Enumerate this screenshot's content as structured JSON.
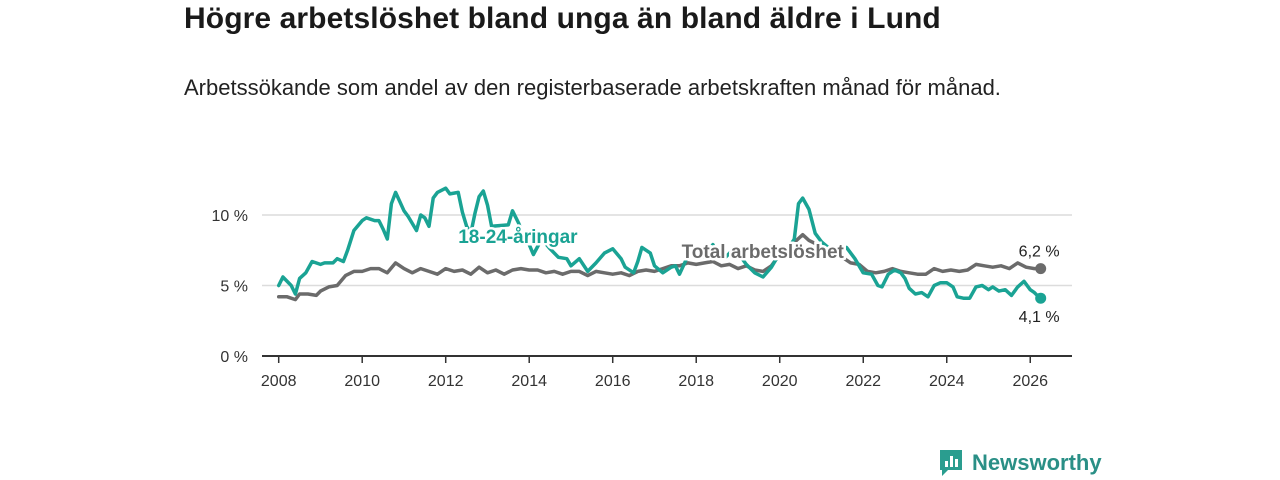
{
  "header": {
    "title": "Högre arbetslöshet bland unga än bland äldre i Lund",
    "subtitle": "Arbetssökande som andel av den registerbaserade arbetskraften månad för månad."
  },
  "brand": {
    "name": "Newsworthy",
    "color": "#2a9d8f"
  },
  "colors": {
    "youth": "#1aa394",
    "total": "#6b6b6b",
    "grid": "#dcdcdc",
    "axis": "#333333"
  },
  "chart_data": {
    "type": "line",
    "title": "Högre arbetslöshet bland unga än bland äldre i Lund",
    "subtitle": "Arbetssökande som andel av den registerbaserade arbetskraften månad för månad.",
    "x_ticks": [
      "2008",
      "2010",
      "2012",
      "2014",
      "2016",
      "2018",
      "2020",
      "2022",
      "2024",
      "2026"
    ],
    "y_ticks": [
      "0 %",
      "5 %",
      "10 %"
    ],
    "xlim": [
      2007.6,
      2027.0
    ],
    "ylim": [
      0,
      10
    ],
    "grid": true,
    "series": [
      {
        "name": "18-24-åringar",
        "end_label": "4,1 %",
        "points": [
          [
            2008.0,
            5.0
          ],
          [
            2008.1,
            5.6
          ],
          [
            2008.3,
            5.0
          ],
          [
            2008.4,
            4.4
          ],
          [
            2008.5,
            5.5
          ],
          [
            2008.65,
            5.9
          ],
          [
            2008.8,
            6.7
          ],
          [
            2009.0,
            6.5
          ],
          [
            2009.1,
            6.6
          ],
          [
            2009.3,
            6.6
          ],
          [
            2009.4,
            6.9
          ],
          [
            2009.55,
            6.7
          ],
          [
            2009.65,
            7.5
          ],
          [
            2009.8,
            8.9
          ],
          [
            2010.0,
            9.6
          ],
          [
            2010.1,
            9.8
          ],
          [
            2010.3,
            9.6
          ],
          [
            2010.4,
            9.6
          ],
          [
            2010.5,
            9.0
          ],
          [
            2010.6,
            8.3
          ],
          [
            2010.7,
            10.8
          ],
          [
            2010.8,
            11.6
          ],
          [
            2011.0,
            10.3
          ],
          [
            2011.1,
            9.9
          ],
          [
            2011.3,
            8.9
          ],
          [
            2011.4,
            10.0
          ],
          [
            2011.5,
            9.8
          ],
          [
            2011.6,
            9.2
          ],
          [
            2011.7,
            11.2
          ],
          [
            2011.8,
            11.6
          ],
          [
            2012.0,
            11.9
          ],
          [
            2012.1,
            11.5
          ],
          [
            2012.3,
            11.6
          ],
          [
            2012.4,
            10.2
          ],
          [
            2012.5,
            9.2
          ],
          [
            2012.6,
            8.7
          ],
          [
            2012.7,
            10.1
          ],
          [
            2012.8,
            11.3
          ],
          [
            2012.9,
            11.7
          ],
          [
            2013.0,
            10.7
          ],
          [
            2013.1,
            9.2
          ],
          [
            2013.5,
            9.3
          ],
          [
            2013.6,
            10.3
          ],
          [
            2013.75,
            9.4
          ],
          [
            2013.9,
            8.2
          ],
          [
            2014.0,
            7.9
          ],
          [
            2014.1,
            7.2
          ],
          [
            2014.3,
            8.3
          ],
          [
            2014.5,
            7.6
          ],
          [
            2014.7,
            7.0
          ],
          [
            2014.9,
            6.9
          ],
          [
            2015.0,
            6.4
          ],
          [
            2015.2,
            6.9
          ],
          [
            2015.4,
            6.0
          ],
          [
            2015.6,
            6.6
          ],
          [
            2015.8,
            7.3
          ],
          [
            2016.0,
            7.6
          ],
          [
            2016.2,
            6.9
          ],
          [
            2016.3,
            6.3
          ],
          [
            2016.5,
            5.9
          ],
          [
            2016.6,
            6.7
          ],
          [
            2016.7,
            7.7
          ],
          [
            2016.9,
            7.3
          ],
          [
            2017.0,
            6.4
          ],
          [
            2017.2,
            5.9
          ],
          [
            2017.4,
            6.3
          ],
          [
            2017.5,
            6.4
          ],
          [
            2017.6,
            5.8
          ],
          [
            2017.8,
            7.1
          ],
          [
            2018.0,
            7.4
          ],
          [
            2018.2,
            7.0
          ],
          [
            2018.4,
            7.9
          ],
          [
            2018.5,
            7.3
          ],
          [
            2018.7,
            7.0
          ],
          [
            2018.9,
            7.6
          ],
          [
            2019.0,
            7.3
          ],
          [
            2019.2,
            6.5
          ],
          [
            2019.4,
            5.9
          ],
          [
            2019.6,
            5.6
          ],
          [
            2019.8,
            6.3
          ],
          [
            2020.0,
            7.3
          ],
          [
            2020.2,
            7.6
          ],
          [
            2020.35,
            8.3
          ],
          [
            2020.45,
            10.8
          ],
          [
            2020.55,
            11.2
          ],
          [
            2020.7,
            10.4
          ],
          [
            2020.85,
            8.7
          ],
          [
            2021.0,
            8.1
          ],
          [
            2021.2,
            7.6
          ],
          [
            2021.4,
            7.3
          ],
          [
            2021.6,
            7.7
          ],
          [
            2021.8,
            6.9
          ],
          [
            2022.0,
            5.9
          ],
          [
            2022.2,
            5.8
          ],
          [
            2022.35,
            5.0
          ],
          [
            2022.45,
            4.9
          ],
          [
            2022.6,
            5.8
          ],
          [
            2022.75,
            6.1
          ],
          [
            2022.9,
            5.9
          ],
          [
            2023.0,
            5.5
          ],
          [
            2023.1,
            4.8
          ],
          [
            2023.25,
            4.4
          ],
          [
            2023.4,
            4.5
          ],
          [
            2023.55,
            4.2
          ],
          [
            2023.7,
            5.0
          ],
          [
            2023.85,
            5.2
          ],
          [
            2024.0,
            5.2
          ],
          [
            2024.15,
            4.9
          ],
          [
            2024.25,
            4.2
          ],
          [
            2024.4,
            4.1
          ],
          [
            2024.55,
            4.1
          ],
          [
            2024.7,
            4.9
          ],
          [
            2024.85,
            5.0
          ],
          [
            2025.0,
            4.7
          ],
          [
            2025.1,
            4.9
          ],
          [
            2025.25,
            4.6
          ],
          [
            2025.4,
            4.7
          ],
          [
            2025.55,
            4.3
          ],
          [
            2025.7,
            4.9
          ],
          [
            2025.85,
            5.3
          ],
          [
            2026.0,
            4.7
          ],
          [
            2026.1,
            4.5
          ],
          [
            2026.2,
            4.2
          ],
          [
            2026.25,
            4.1
          ]
        ]
      },
      {
        "name": "Total arbetslöshet",
        "end_label": "6,2 %",
        "points": [
          [
            2008.0,
            4.2
          ],
          [
            2008.2,
            4.2
          ],
          [
            2008.4,
            4.0
          ],
          [
            2008.5,
            4.4
          ],
          [
            2008.7,
            4.4
          ],
          [
            2008.9,
            4.3
          ],
          [
            2009.0,
            4.6
          ],
          [
            2009.2,
            4.9
          ],
          [
            2009.4,
            5.0
          ],
          [
            2009.6,
            5.7
          ],
          [
            2009.8,
            6.0
          ],
          [
            2010.0,
            6.0
          ],
          [
            2010.2,
            6.2
          ],
          [
            2010.4,
            6.2
          ],
          [
            2010.6,
            5.9
          ],
          [
            2010.8,
            6.6
          ],
          [
            2011.0,
            6.2
          ],
          [
            2011.2,
            5.9
          ],
          [
            2011.4,
            6.2
          ],
          [
            2011.6,
            6.0
          ],
          [
            2011.8,
            5.8
          ],
          [
            2012.0,
            6.2
          ],
          [
            2012.2,
            6.0
          ],
          [
            2012.4,
            6.1
          ],
          [
            2012.6,
            5.8
          ],
          [
            2012.8,
            6.3
          ],
          [
            2013.0,
            5.9
          ],
          [
            2013.2,
            6.1
          ],
          [
            2013.4,
            5.8
          ],
          [
            2013.6,
            6.1
          ],
          [
            2013.8,
            6.2
          ],
          [
            2014.0,
            6.1
          ],
          [
            2014.2,
            6.1
          ],
          [
            2014.4,
            5.9
          ],
          [
            2014.6,
            6.0
          ],
          [
            2014.8,
            5.8
          ],
          [
            2015.0,
            6.0
          ],
          [
            2015.2,
            6.0
          ],
          [
            2015.4,
            5.7
          ],
          [
            2015.6,
            6.0
          ],
          [
            2015.8,
            5.9
          ],
          [
            2016.0,
            5.8
          ],
          [
            2016.2,
            5.9
          ],
          [
            2016.4,
            5.7
          ],
          [
            2016.6,
            6.0
          ],
          [
            2016.8,
            6.1
          ],
          [
            2017.0,
            6.0
          ],
          [
            2017.2,
            6.2
          ],
          [
            2017.4,
            6.4
          ],
          [
            2017.6,
            6.4
          ],
          [
            2017.8,
            6.6
          ],
          [
            2018.0,
            6.5
          ],
          [
            2018.2,
            6.6
          ],
          [
            2018.4,
            6.7
          ],
          [
            2018.6,
            6.4
          ],
          [
            2018.8,
            6.5
          ],
          [
            2019.0,
            6.2
          ],
          [
            2019.2,
            6.4
          ],
          [
            2019.4,
            6.1
          ],
          [
            2019.6,
            6.0
          ],
          [
            2019.8,
            6.4
          ],
          [
            2020.0,
            7.2
          ],
          [
            2020.2,
            7.7
          ],
          [
            2020.4,
            8.2
          ],
          [
            2020.55,
            8.6
          ],
          [
            2020.7,
            8.2
          ],
          [
            2020.9,
            7.9
          ],
          [
            2021.1,
            7.5
          ],
          [
            2021.3,
            7.3
          ],
          [
            2021.5,
            7.0
          ],
          [
            2021.7,
            6.6
          ],
          [
            2021.9,
            6.5
          ],
          [
            2022.1,
            6.0
          ],
          [
            2022.3,
            5.9
          ],
          [
            2022.5,
            6.0
          ],
          [
            2022.7,
            6.2
          ],
          [
            2022.9,
            6.0
          ],
          [
            2023.1,
            5.9
          ],
          [
            2023.3,
            5.8
          ],
          [
            2023.5,
            5.8
          ],
          [
            2023.7,
            6.2
          ],
          [
            2023.9,
            6.0
          ],
          [
            2024.1,
            6.1
          ],
          [
            2024.3,
            6.0
          ],
          [
            2024.5,
            6.1
          ],
          [
            2024.7,
            6.5
          ],
          [
            2024.9,
            6.4
          ],
          [
            2025.1,
            6.3
          ],
          [
            2025.3,
            6.4
          ],
          [
            2025.5,
            6.2
          ],
          [
            2025.7,
            6.6
          ],
          [
            2025.9,
            6.3
          ],
          [
            2026.1,
            6.2
          ],
          [
            2026.25,
            6.2
          ]
        ]
      }
    ]
  }
}
